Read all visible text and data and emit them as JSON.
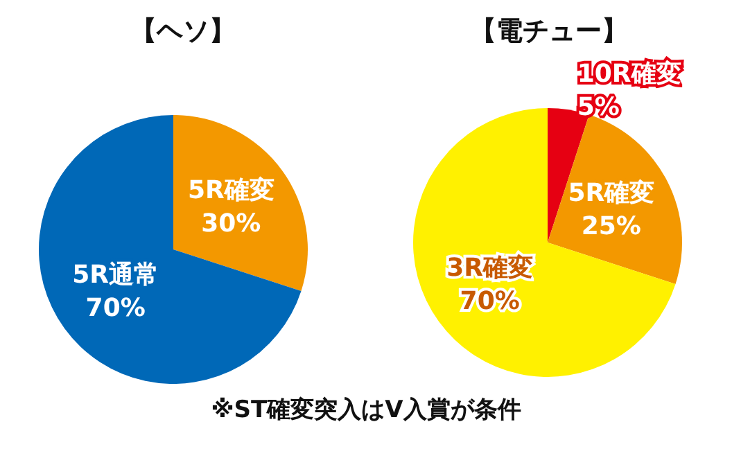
{
  "chart_data": [
    {
      "type": "pie",
      "title": "【ヘソ】",
      "categories": [
        "5R確変",
        "5R通常"
      ],
      "values": [
        30,
        70
      ],
      "colors": [
        "#f39800",
        "#0068b7"
      ],
      "value_labels": [
        "30%",
        "70%"
      ],
      "legend": false,
      "annotations": [
        "※ST確変突入はV入賞が条件"
      ]
    },
    {
      "type": "pie",
      "title": "【電チュー】",
      "categories": [
        "10R確変",
        "5R確変",
        "3R確変"
      ],
      "values": [
        5,
        25,
        70
      ],
      "colors": [
        "#e60012",
        "#f39800",
        "#fff100"
      ],
      "value_labels": [
        "5%",
        "25%",
        "70%"
      ],
      "legend": false
    }
  ]
}
